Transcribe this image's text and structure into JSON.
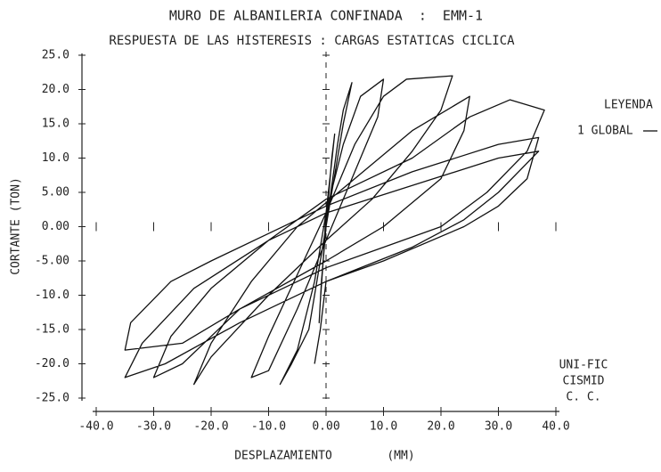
{
  "chart_data": {
    "type": "line",
    "title": "MURO DE ALBANILERIA CONFINADA  :  EMM-1",
    "subtitle": "RESPUESTA DE LAS HISTERESIS : CARGAS ESTATICAS CICLICA",
    "xlabel": "DESPLAZAMIENTO",
    "xlabel_unit": "(MM)",
    "ylabel": "CORTANTE (TON)",
    "legend_title": "LEYENDA",
    "annotations": [
      "UNI-FIC",
      "CISMID",
      "C. C."
    ],
    "xlim": [
      -40,
      40
    ],
    "ylim": [
      -25,
      25
    ],
    "xticks": [
      {
        "value": -40,
        "label": "-40.0"
      },
      {
        "value": -30,
        "label": "-30.0"
      },
      {
        "value": -20,
        "label": "-20.0"
      },
      {
        "value": -10,
        "label": "-10.0"
      },
      {
        "value": 0,
        "label": "0.00"
      },
      {
        "value": 10,
        "label": "10.0"
      },
      {
        "value": 20,
        "label": "20.0"
      },
      {
        "value": 30,
        "label": "30.0"
      },
      {
        "value": 40,
        "label": "40.0"
      }
    ],
    "yticks": [
      {
        "value": 25,
        "label": "25.0"
      },
      {
        "value": 20,
        "label": "20.0"
      },
      {
        "value": 15,
        "label": "15.0"
      },
      {
        "value": 10,
        "label": "10.0"
      },
      {
        "value": 5,
        "label": "5.00"
      },
      {
        "value": 0,
        "label": "0.00"
      },
      {
        "value": -5,
        "label": "-5.00"
      },
      {
        "value": -10,
        "label": "-10.0"
      },
      {
        "value": -15,
        "label": "-15.0"
      },
      {
        "value": -20,
        "label": "-20.0"
      },
      {
        "value": -25,
        "label": "-25.0"
      }
    ],
    "x": [
      0,
      0.5,
      1,
      1.5,
      0.8,
      0,
      -0.5,
      -1,
      -1.2,
      -0.8,
      0,
      2,
      3,
      4.5,
      3,
      1,
      -1,
      -3,
      -6,
      -8,
      -5,
      -2,
      0,
      3,
      6,
      10,
      9,
      5,
      0,
      -5,
      -10,
      -13,
      -10,
      -5,
      0,
      5,
      10,
      14,
      22,
      20,
      15,
      8,
      0,
      -10,
      -20,
      -23,
      -20,
      -13,
      -5,
      5,
      15,
      25,
      24,
      20,
      10,
      0,
      -15,
      -25,
      -30,
      -27,
      -20,
      -10,
      0,
      15,
      25,
      32,
      38,
      35,
      28,
      20,
      10,
      0,
      -15,
      -25,
      -35,
      -34,
      -27,
      -20,
      -10,
      0,
      15,
      30,
      37,
      35,
      30,
      24,
      10,
      0,
      -15,
      -28,
      -35,
      -32,
      -23,
      -10,
      0,
      15,
      30,
      37,
      30,
      24,
      15,
      0,
      -1,
      -2
    ],
    "series": [
      {
        "name": "1 GLOBAL",
        "color": "#111111",
        "values": [
          0,
          5,
          10,
          13.5,
          8,
          2,
          -5,
          -11,
          -14,
          -8,
          0,
          12,
          17,
          21,
          15,
          5,
          -5,
          -15,
          -20,
          -23,
          -18,
          -8,
          2,
          12,
          19,
          21.5,
          16,
          8,
          -2,
          -12,
          -21,
          -22,
          -16,
          -7,
          2,
          12,
          19,
          21.5,
          22,
          17,
          11,
          4,
          -2,
          -10,
          -19,
          -23,
          -17,
          -8,
          0,
          7,
          14,
          19,
          14,
          7,
          0,
          -5,
          -12,
          -20,
          -22,
          -16,
          -9,
          -2,
          4,
          10,
          16,
          18.5,
          17,
          11,
          5,
          0,
          -3,
          -6,
          -12,
          -17,
          -18,
          -14,
          -8,
          -5,
          -1,
          3,
          8,
          12,
          13,
          7,
          3,
          0,
          -5,
          -8,
          -14,
          -20,
          -22,
          -17,
          -9,
          -2,
          2,
          6,
          10,
          11,
          5,
          1,
          -3,
          -8,
          -15,
          -20
        ]
      }
    ]
  }
}
